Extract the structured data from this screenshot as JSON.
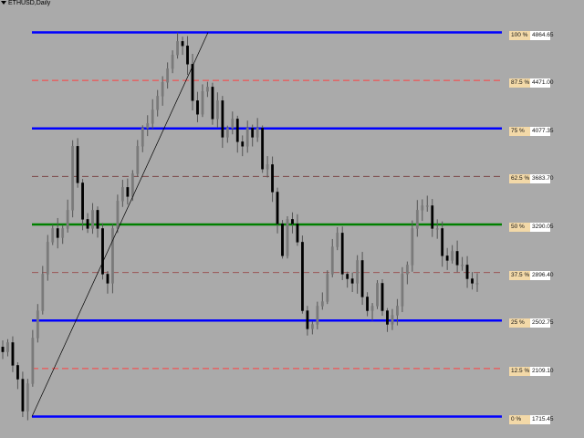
{
  "header": {
    "title": "ETHUSD,Daily"
  },
  "chart_data": {
    "type": "candlestick",
    "symbol": "ETHUSD",
    "timeframe": "Daily",
    "closes": [
      2246,
      2322,
      2135,
      2022,
      1760,
      1985,
      2359,
      2583,
      2883,
      3145,
      3257,
      3182,
      3257,
      3407,
      3931,
      3631,
      3332,
      3257,
      3407,
      3257,
      2883,
      2808,
      3257,
      3482,
      3594,
      3519,
      3706,
      3931,
      4080,
      4118,
      4230,
      4342,
      4455,
      4567,
      4679,
      4791,
      4754,
      4604,
      4305,
      4193,
      4380,
      4417,
      4155,
      4305,
      4005,
      4080,
      4155,
      3968,
      3931,
      4080,
      4005,
      4080,
      3744,
      3781,
      3556,
      3295,
      3033,
      3332,
      3295,
      3145,
      2583,
      2434,
      2471,
      2621,
      2658,
      2883,
      3107,
      3220,
      2883,
      2845,
      2808,
      2995,
      2696,
      2583,
      2621,
      2808,
      2583,
      2471,
      2546,
      2621,
      2883,
      2958,
      3257,
      3407,
      3444,
      3444,
      3257,
      3257,
      3033,
      2995,
      3070,
      2958,
      2958,
      2845,
      2808,
      2808
    ],
    "ylim": [
      1715.45,
      4864.65
    ],
    "grid": false,
    "fibonacci": {
      "anchor_low": 1715.45,
      "anchor_high": 4864.65,
      "levels": [
        {
          "pct": "100 %",
          "value": "4864.65",
          "price": 4864.65,
          "color": "#0000ff",
          "style": "solid"
        },
        {
          "pct": "87.5 %",
          "value": "4471.00",
          "price": 4471.0,
          "color": "#ff4040",
          "style": "dashed"
        },
        {
          "pct": "75 %",
          "value": "4077.35",
          "price": 4077.35,
          "color": "#0000ff",
          "style": "solid"
        },
        {
          "pct": "62.5 %",
          "value": "3683.70",
          "price": 3683.7,
          "color": "#7a4545",
          "style": "dashed"
        },
        {
          "pct": "50 %",
          "value": "3290.05",
          "price": 3290.05,
          "color": "#008000",
          "style": "solid"
        },
        {
          "pct": "37.5 %",
          "value": "2896.40",
          "price": 2896.4,
          "color": "#9a5555",
          "style": "dashed"
        },
        {
          "pct": "25 %",
          "value": "2502.75",
          "price": 2502.75,
          "color": "#0000ff",
          "style": "solid"
        },
        {
          "pct": "12.5 %",
          "value": "2109.10",
          "price": 2109.1,
          "color": "#ff4040",
          "style": "dashed"
        },
        {
          "pct": "0 %",
          "value": "1715.45",
          "price": 1715.45,
          "color": "#0000ff",
          "style": "solid"
        }
      ]
    },
    "colors": {
      "background": "#aaaaaa",
      "bull_candle": "#7a7a7a",
      "bear_candle": "#000000",
      "trendline": "#000000"
    }
  }
}
